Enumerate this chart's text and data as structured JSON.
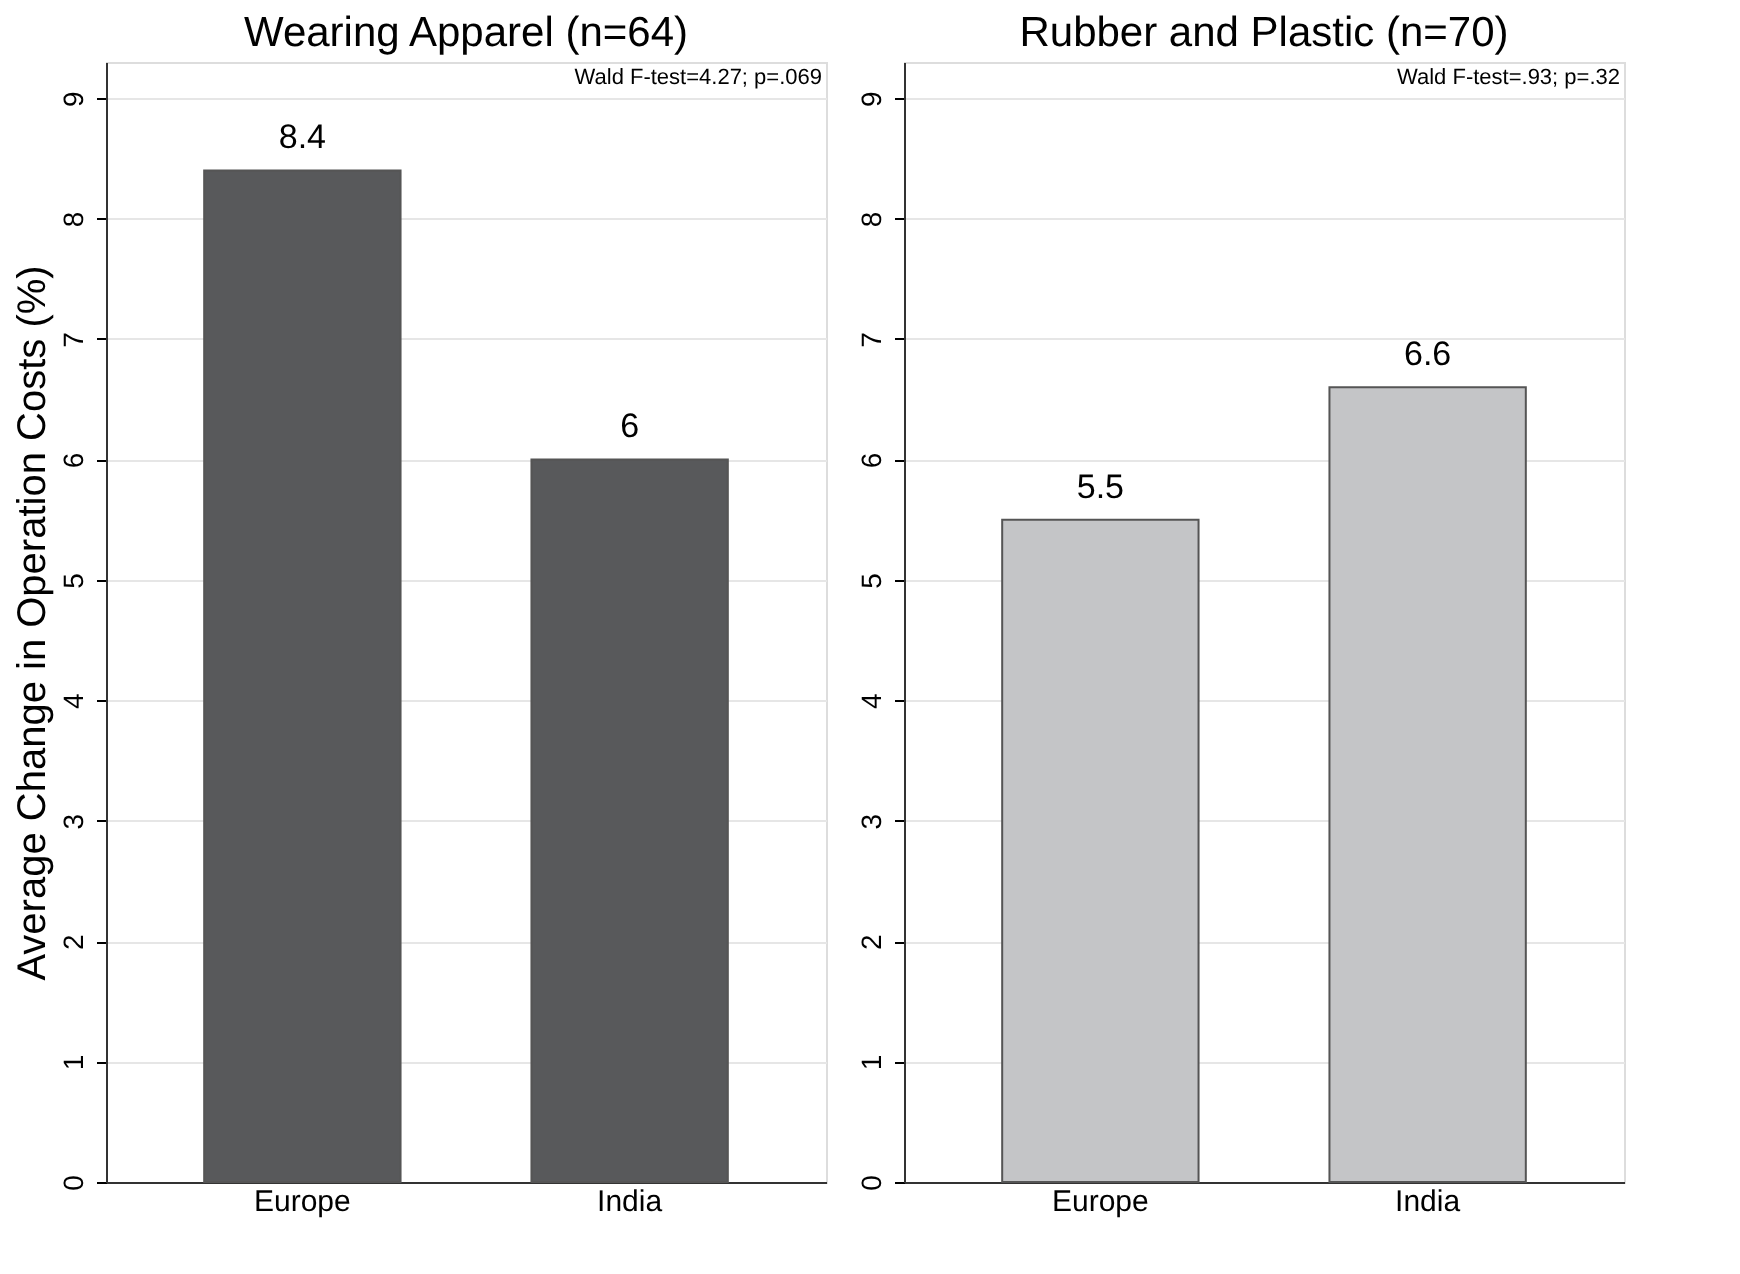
{
  "chart_data": [
    {
      "type": "bar",
      "title": "Wearing Apparel (n=64)",
      "ylabel": "Average Change in Operation Costs (%)",
      "categories": [
        "Europe",
        "India"
      ],
      "values": [
        8.4,
        6
      ],
      "color": "#58595b",
      "ylim": [
        0,
        9.3
      ],
      "yticks": [
        0,
        1,
        2,
        3,
        4,
        5,
        6,
        7,
        8,
        9
      ],
      "grid": "y",
      "data_labels": true,
      "annotations": [
        "Wald F-test=4.27; p=.069"
      ]
    },
    {
      "type": "bar",
      "title": "Rubber and Plastic (n=70)",
      "categories": [
        "Europe",
        "India"
      ],
      "values": [
        5.5,
        6.6
      ],
      "color": "#c4c5c7",
      "ylim": [
        0,
        9.3
      ],
      "yticks": [
        0,
        1,
        2,
        3,
        4,
        5,
        6,
        7,
        8,
        9
      ],
      "grid": "y",
      "data_labels": true,
      "annotations": [
        "Wald F-test=.93; p=.32"
      ]
    }
  ]
}
